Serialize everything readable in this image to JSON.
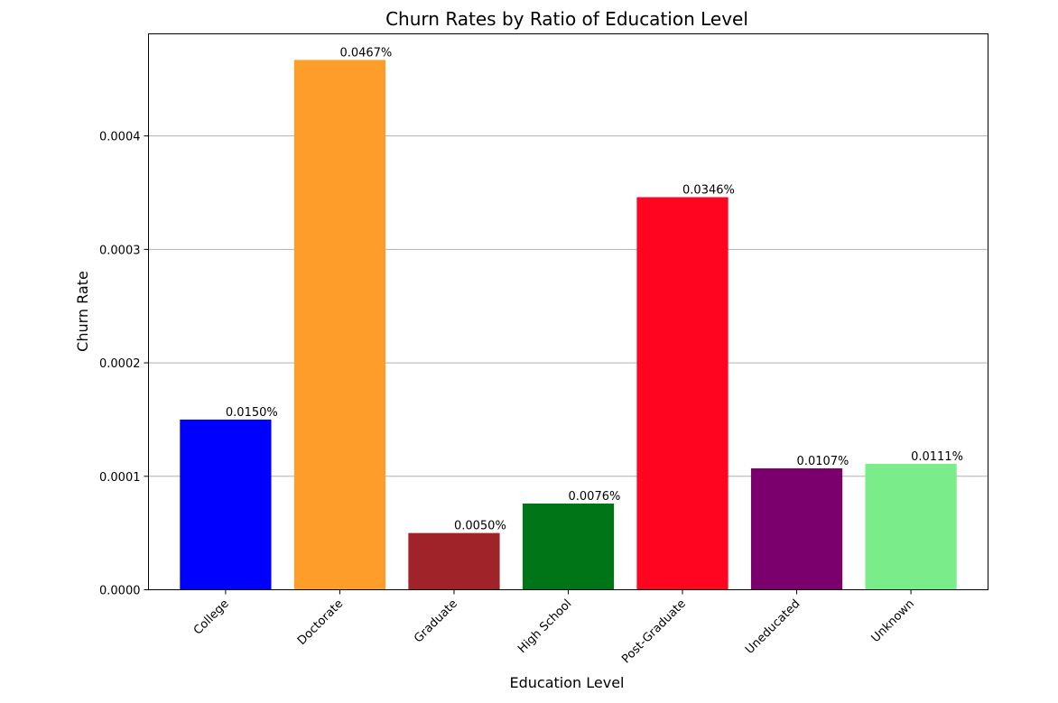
{
  "chart_data": {
    "type": "bar",
    "title": "Churn Rates by Ratio of Education Level",
    "xlabel": "Education Level",
    "ylabel": "Churn Rate",
    "categories": [
      "College",
      "Doctorate",
      "Graduate",
      "High School",
      "Post-Graduate",
      "Uneducated",
      "Unknown"
    ],
    "values": [
      0.00015,
      0.000467,
      5e-05,
      7.6e-05,
      0.000346,
      0.000107,
      0.000111
    ],
    "data_labels": [
      "0.0150%",
      "0.0467%",
      "0.0050%",
      "0.0076%",
      "0.0346%",
      "0.0107%",
      "0.0111%"
    ],
    "colors": [
      "#0000ff",
      "#ff9d2b",
      "#a0232a",
      "#007518",
      "#ff0520",
      "#7b006d",
      "#7aec8a"
    ],
    "yticks": [
      0.0,
      0.0001,
      0.0002,
      0.0003,
      0.0004
    ],
    "ytick_labels": [
      "0.0000",
      "0.0001",
      "0.0002",
      "0.0003",
      "0.0004"
    ],
    "ylim": [
      0,
      0.00049
    ],
    "grid": "horizontal",
    "legend": "none",
    "xtick_rotation": 45
  }
}
